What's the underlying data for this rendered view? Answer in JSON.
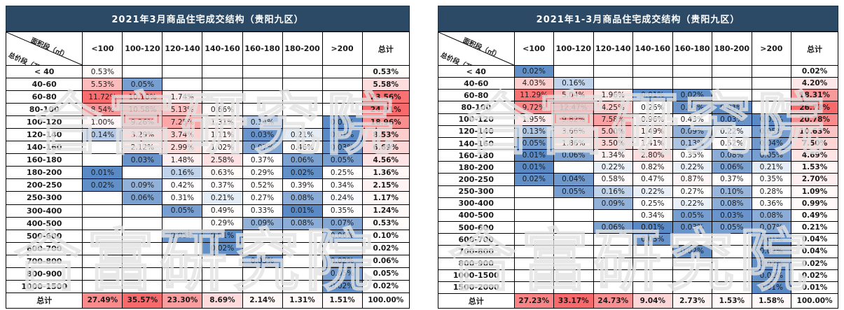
{
  "watermark_text": "合富研究院",
  "colors": {
    "title_bg": "#2C4A66",
    "title_text": "#FFFFFF",
    "heat_red": "#F8696B",
    "heat_blue": "#5A8AC6",
    "heat_mid": "#FFFFFF",
    "grid_line": "#000000"
  },
  "chart_data": [
    {
      "type": "heatmap",
      "title": "2021年3月商品住宅成交结构（贵阳九区）",
      "corner_top_label": "面积段（㎡）",
      "corner_bottom_label": "总价段（万元）",
      "columns": [
        "<100",
        "100-120",
        "120-140",
        "140-160",
        "160-180",
        "180-200",
        ">200",
        "总计"
      ],
      "rows": [
        {
          "label": "< 40",
          "cells": [
            "0.53%",
            "",
            "",
            "",
            "",
            "",
            "",
            "0.53%"
          ]
        },
        {
          "label": "40-60",
          "cells": [
            "5.53%",
            "0.05%",
            "",
            "",
            "",
            "",
            "",
            "5.58%"
          ]
        },
        {
          "label": "60-80",
          "cells": [
            "11.72%",
            "10.10%",
            "1.74%",
            "",
            "",
            "",
            "",
            "23.56%"
          ]
        },
        {
          "label": "80-100",
          "cells": [
            "8.54%",
            "10.58%",
            "5.13%",
            "0.66%",
            "",
            "",
            "",
            "24.91%"
          ]
        },
        {
          "label": "100-120",
          "cells": [
            "1.00%",
            "9.26%",
            "7.25%",
            "1.31%",
            "0.14%",
            "",
            "0.01%",
            "18.96%"
          ]
        },
        {
          "label": "120-140",
          "cells": [
            "0.14%",
            "3.29%",
            "3.74%",
            "1.11%",
            "0.03%",
            "0.21%",
            "0.01%",
            "8.53%"
          ]
        },
        {
          "label": "140-160",
          "cells": [
            "",
            "2.12%",
            "2.99%",
            "1.02%",
            "0.07%",
            "0.46%",
            "0.03%",
            "6.69%"
          ]
        },
        {
          "label": "160-180",
          "cells": [
            "",
            "0.03%",
            "1.48%",
            "2.58%",
            "0.37%",
            "0.06%",
            "0.05%",
            "4.56%"
          ]
        },
        {
          "label": "180-200",
          "cells": [
            "0.01%",
            "",
            "0.16%",
            "0.63%",
            "0.29%",
            "0.02%",
            "0.25%",
            "1.36%"
          ]
        },
        {
          "label": "200-250",
          "cells": [
            "0.02%",
            "0.09%",
            "0.42%",
            "0.37%",
            "0.52%",
            "0.39%",
            "0.34%",
            "2.15%"
          ]
        },
        {
          "label": "250-300",
          "cells": [
            "",
            "0.06%",
            "0.31%",
            "0.21%",
            "0.27%",
            "0.08%",
            "0.24%",
            "1.17%"
          ]
        },
        {
          "label": "300-400",
          "cells": [
            "",
            "",
            "0.05%",
            "0.49%",
            "0.33%",
            "0.01%",
            "0.35%",
            "1.24%"
          ]
        },
        {
          "label": "400-500",
          "cells": [
            "",
            "",
            "",
            "0.29%",
            "0.09%",
            "0.08%",
            "0.07%",
            "0.53%"
          ]
        },
        {
          "label": "500-600",
          "cells": [
            "",
            "",
            "0.03%",
            "0.01%",
            "",
            "",
            "0.06%",
            "0.10%"
          ]
        },
        {
          "label": "600-700",
          "cells": [
            "",
            "",
            "",
            "0.02%",
            "",
            "",
            "",
            "0.02%"
          ]
        },
        {
          "label": "700-800",
          "cells": [
            "",
            "",
            "",
            "",
            "0.03%",
            "",
            "0.02%",
            "0.06%"
          ]
        },
        {
          "label": "800-900",
          "cells": [
            "",
            "",
            "",
            "",
            "",
            "",
            "0.05%",
            "0.05%"
          ]
        },
        {
          "label": "1000-1500",
          "cells": [
            "",
            "",
            "",
            "",
            "",
            "",
            "0.02%",
            "0.02%"
          ]
        }
      ],
      "total_row": {
        "label": "总计",
        "cells": [
          "27.49%",
          "35.57%",
          "23.30%",
          "8.69%",
          "2.14%",
          "1.31%",
          "1.51%",
          "100.00%"
        ]
      }
    },
    {
      "type": "heatmap",
      "title": "2021年1-3月商品住宅成交结构（贵阳九区）",
      "corner_top_label": "面积段（㎡）",
      "corner_bottom_label": "总价段（万元）",
      "columns": [
        "<100",
        "100-120",
        "120-140",
        "140-160",
        "160-180",
        "180-200",
        ">200",
        "总计"
      ],
      "rows": [
        {
          "label": "< 40",
          "cells": [
            "0.02%",
            "",
            "",
            "",
            "",
            "",
            "",
            "0.02%"
          ]
        },
        {
          "label": "40-60",
          "cells": [
            "4.03%",
            "0.16%",
            "",
            "",
            "",
            "",
            "",
            "4.20%"
          ]
        },
        {
          "label": "60-80",
          "cells": [
            "11.29%",
            "5.04%",
            "1.96%",
            "0.01%",
            "0.02%",
            "",
            "",
            "18.31%"
          ]
        },
        {
          "label": "80-100",
          "cells": [
            "9.72%",
            "12.47%",
            "4.25%",
            "0.26%",
            "0.03%",
            "0.01%",
            "",
            "26.73%"
          ]
        },
        {
          "label": "100-120",
          "cells": [
            "1.95%",
            "9.82%",
            "7.58%",
            "0.96%",
            "0.43%",
            "0.03%",
            "0.01%",
            "20.78%"
          ]
        },
        {
          "label": "120-140",
          "cells": [
            "0.13%",
            "3.66%",
            "5.00%",
            "1.49%",
            "0.09%",
            "0.22%",
            "0.05%",
            "10.63%"
          ]
        },
        {
          "label": "140-160",
          "cells": [
            "0.05%",
            "1.86%",
            "3.50%",
            "1.41%",
            "0.13%",
            "0.52%",
            "0.04%",
            "7.50%"
          ]
        },
        {
          "label": "160-180",
          "cells": [
            "0.01%",
            "0.06%",
            "1.34%",
            "2.80%",
            "0.35%",
            "0.08%",
            "0.05%",
            "4.69%"
          ]
        },
        {
          "label": "180-200",
          "cells": [
            "0.01%",
            "",
            "0.22%",
            "0.82%",
            "0.22%",
            "0.06%",
            "0.21%",
            "1.53%"
          ]
        },
        {
          "label": "200-250",
          "cells": [
            "0.02%",
            "0.04%",
            "0.58%",
            "0.47%",
            "0.87%",
            "0.37%",
            "0.35%",
            "2.70%"
          ]
        },
        {
          "label": "250-300",
          "cells": [
            "",
            "0.05%",
            "0.16%",
            "0.22%",
            "0.27%",
            "0.10%",
            "0.28%",
            "1.09%"
          ]
        },
        {
          "label": "300-400",
          "cells": [
            "",
            "",
            "0.09%",
            "0.25%",
            "0.22%",
            "0.08%",
            "0.36%",
            "0.99%"
          ]
        },
        {
          "label": "400-500",
          "cells": [
            "",
            "",
            "",
            "0.34%",
            "0.05%",
            "0.03%",
            "0.08%",
            "0.49%"
          ]
        },
        {
          "label": "500-600",
          "cells": [
            "",
            "",
            "0.06%",
            "0.01%",
            "0.03%",
            "0.05%",
            "0.07%",
            "0.21%"
          ]
        },
        {
          "label": "600-700",
          "cells": [
            "",
            "",
            "",
            "0.03%",
            "",
            "",
            "0.01%",
            "0.04%"
          ]
        },
        {
          "label": "700-800",
          "cells": [
            "",
            "",
            "",
            "",
            "0.02%",
            "",
            "0.02%",
            "0.04%"
          ]
        },
        {
          "label": "800-900",
          "cells": [
            "",
            "",
            "",
            "",
            "",
            "",
            "0.02%",
            "0.02%"
          ]
        },
        {
          "label": "1000-1500",
          "cells": [
            "",
            "",
            "",
            "",
            "",
            "",
            "0.02%",
            "0.02%"
          ]
        },
        {
          "label": "1500-2000",
          "cells": [
            "",
            "",
            "",
            "",
            "",
            "",
            "0.01%",
            "0.01%"
          ]
        }
      ],
      "total_row": {
        "label": "总计",
        "cells": [
          "27.23%",
          "33.17%",
          "24.73%",
          "9.04%",
          "2.73%",
          "1.53%",
          "1.58%",
          "100.00%"
        ]
      }
    }
  ]
}
